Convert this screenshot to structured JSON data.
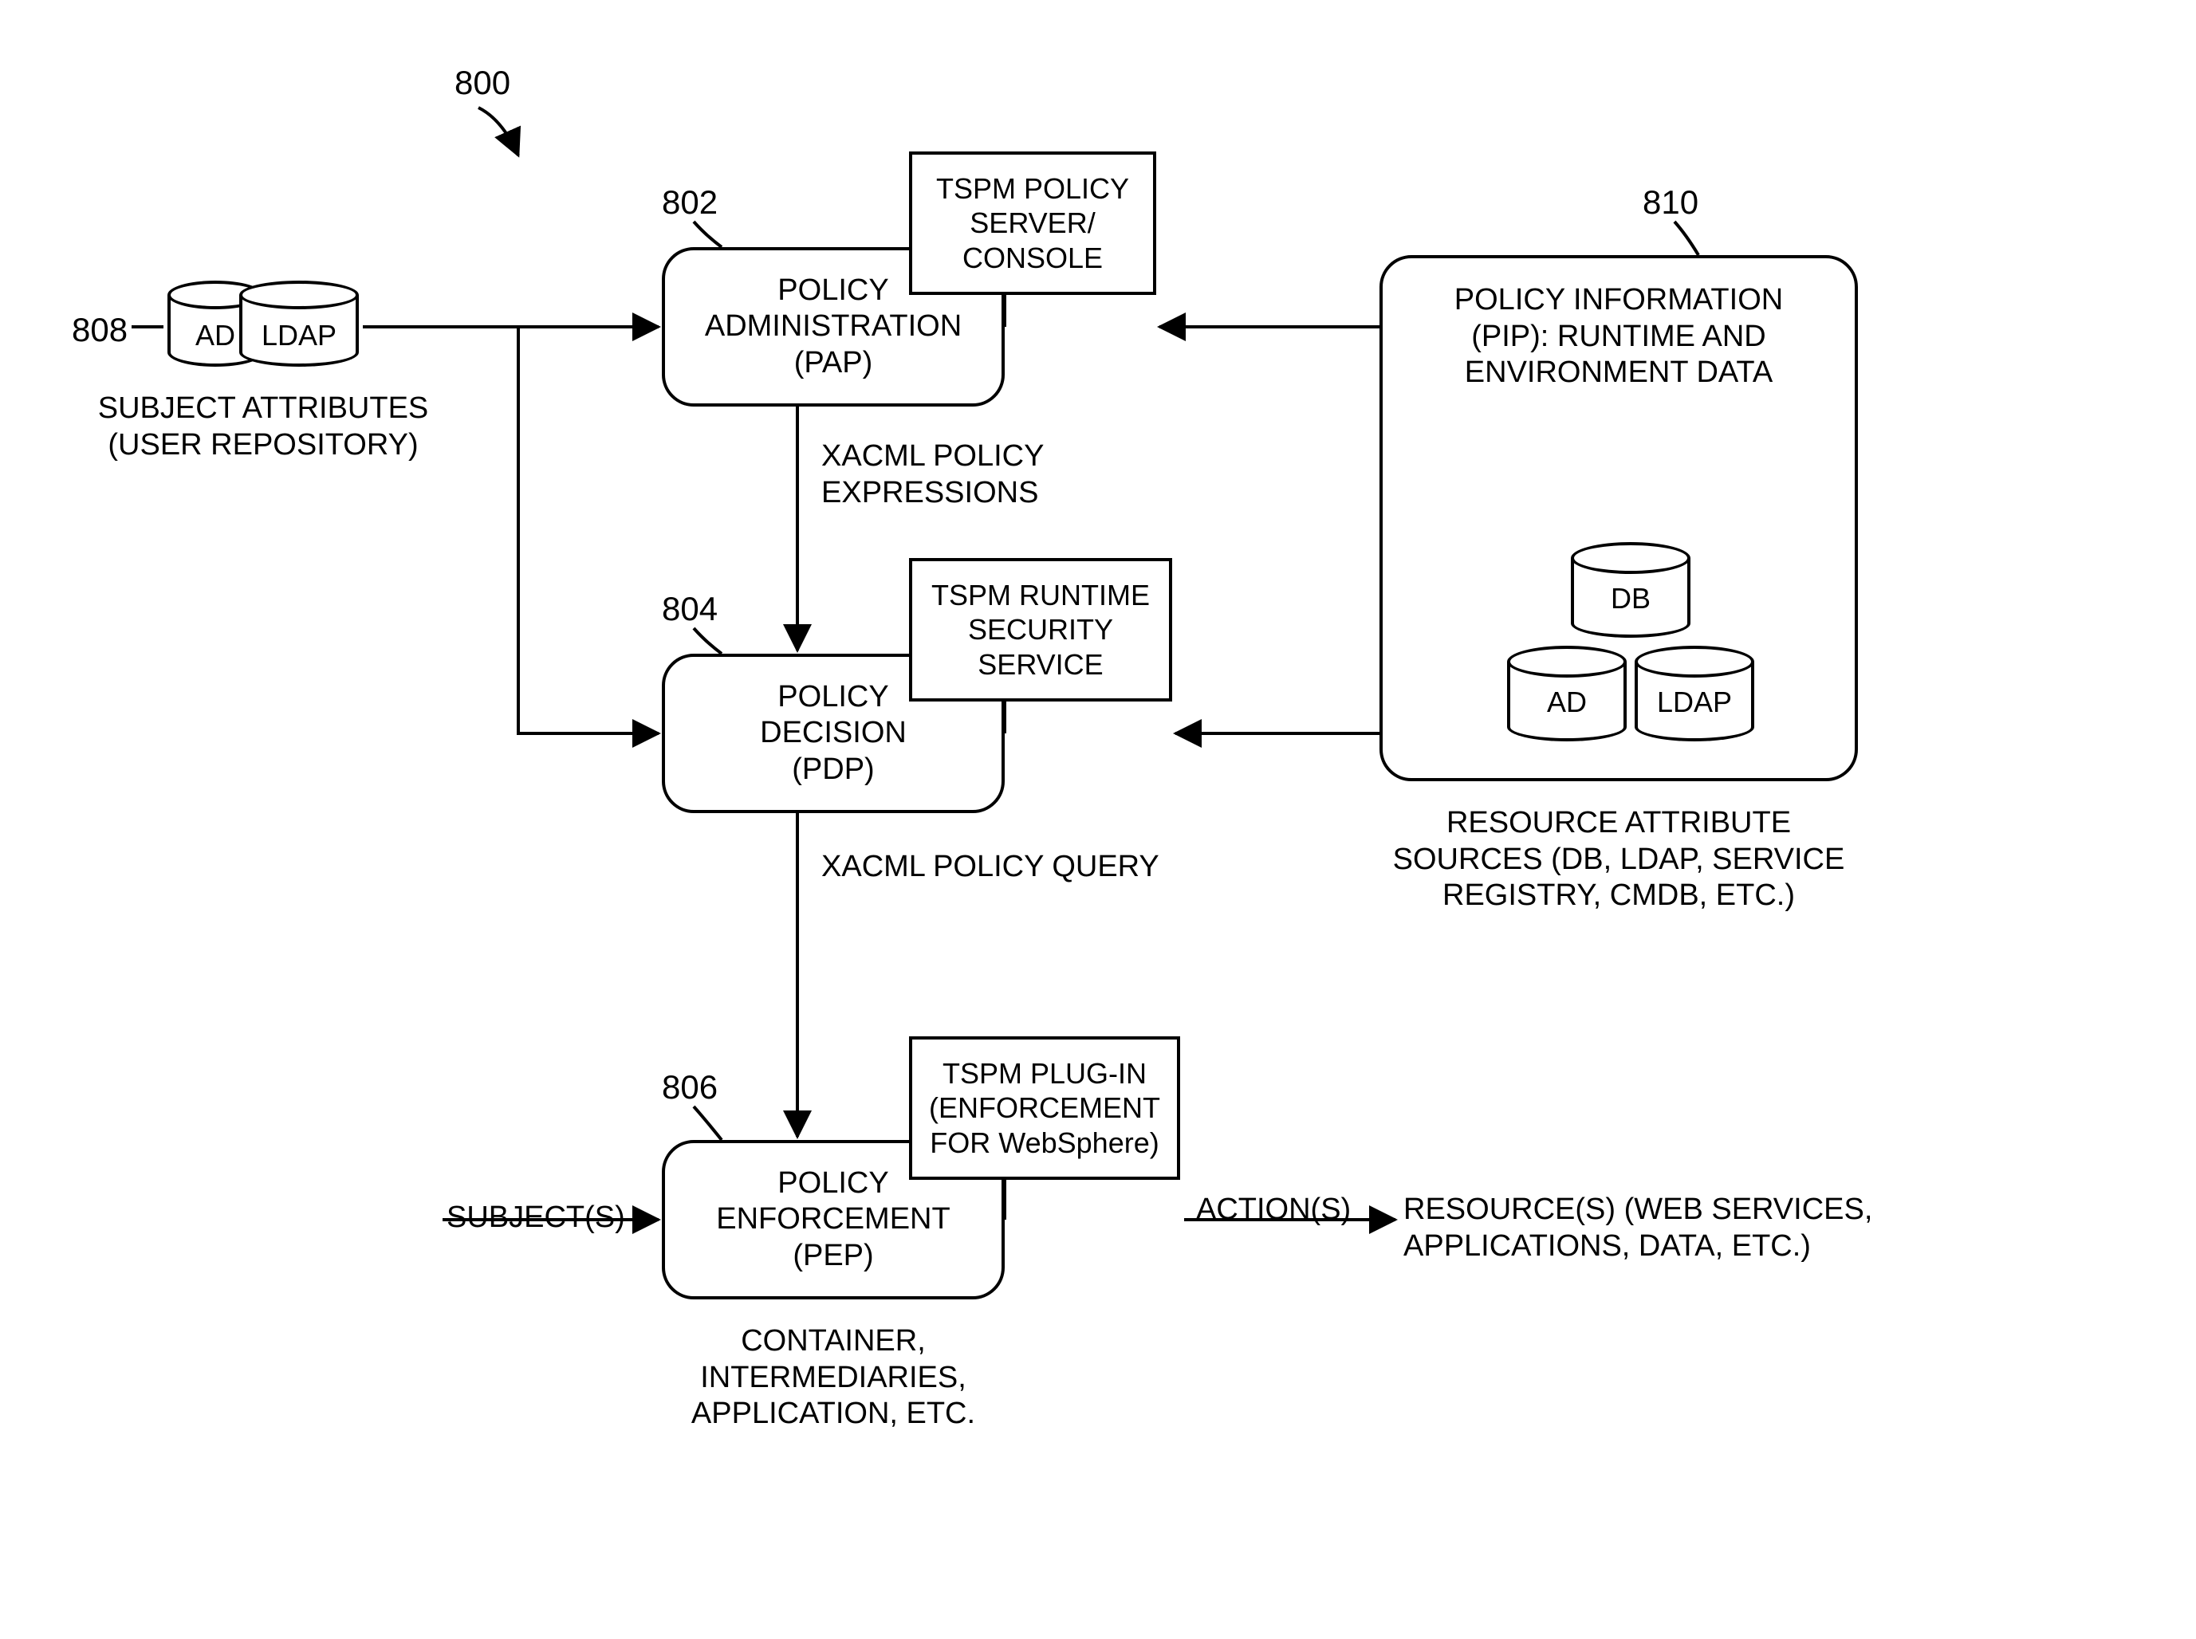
{
  "figure": {
    "ref_main": "800",
    "ref_pap": "802",
    "ref_pdp": "804",
    "ref_pep": "806",
    "ref_subject_attrs": "808",
    "ref_pip": "810",
    "nodes": {
      "pap": {
        "title": "POLICY\nADMINISTRATION\n(PAP)",
        "attach": "TSPM POLICY\nSERVER/\nCONSOLE"
      },
      "pdp": {
        "title": "POLICY\nDECISION\n(PDP)",
        "attach": "TSPM RUNTIME\nSECURITY\nSERVICE"
      },
      "pep": {
        "title": "POLICY\nENFORCEMENT\n(PEP)",
        "attach": "TSPM PLUG-IN\n(ENFORCEMENT\nFOR WebSphere)",
        "below": "CONTAINER,\nINTERMEDIARIES,\nAPPLICATION, ETC."
      },
      "pip": {
        "title": "POLICY INFORMATION\n(PIP): RUNTIME AND\nENVIRONMENT DATA",
        "below": "RESOURCE ATTRIBUTE\nSOURCES (DB, LDAP, SERVICE\nREGISTRY, CMDB, ETC.)",
        "db_labels": {
          "top": "DB",
          "left": "AD",
          "right": "LDAP"
        }
      },
      "subject_attrs": {
        "below": "SUBJECT ATTRIBUTES\n(USER REPOSITORY)",
        "db_labels": {
          "left": "AD",
          "right": "LDAP"
        }
      }
    },
    "edge_labels": {
      "pap_to_pdp": "XACML POLICY EXPRESSIONS",
      "pdp_to_pep": "XACML POLICY QUERY",
      "subjects_to_pep": "SUBJECT(S)",
      "pep_to_resources": "ACTION(S)",
      "resources": "RESOURCE(S) (WEB SERVICES,\nAPPLICATIONS, DATA, ETC.)"
    },
    "style": {
      "stroke_color": "#000000",
      "stroke_width": 4,
      "background": "#ffffff",
      "font_family": "Arial",
      "node_font_size": 38,
      "label_font_size": 38,
      "ref_font_size": 42,
      "corner_radius": 40
    }
  }
}
